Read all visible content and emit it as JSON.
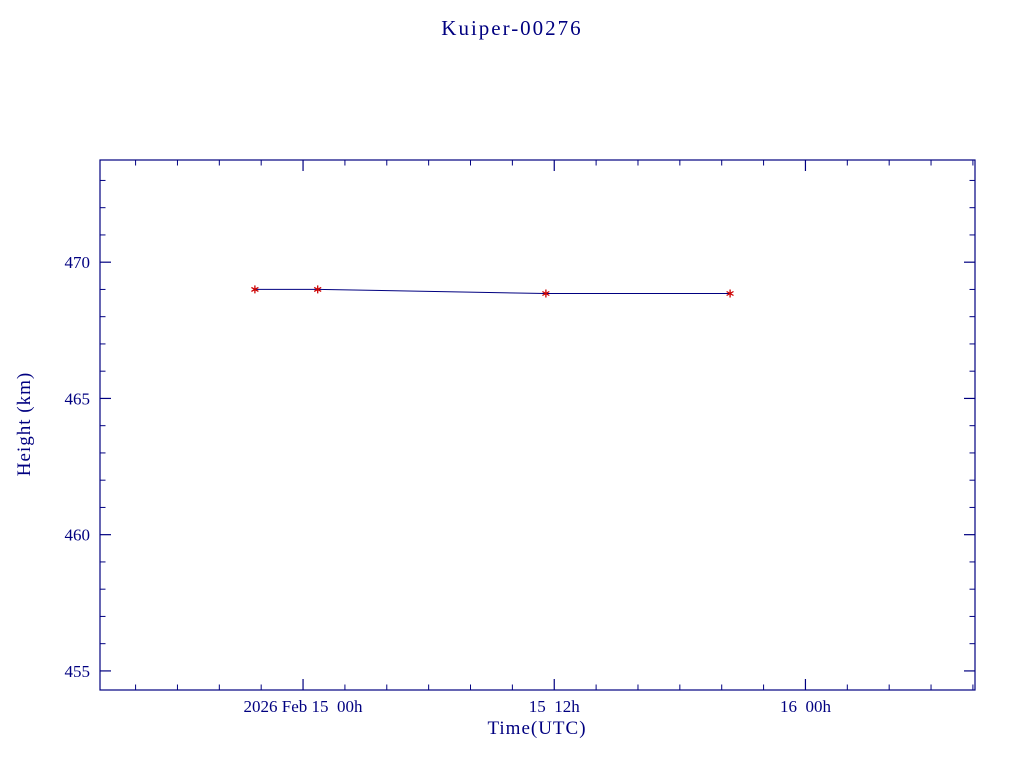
{
  "page": {
    "background": "#ffffff"
  },
  "chart_data": {
    "type": "line",
    "title": "Kuiper-00276",
    "xlabel": "Time(UTC)",
    "ylabel": "Height (km)",
    "axis_color": "#000080",
    "line_color": "#000080",
    "marker": "asterisk",
    "marker_color": "#cc0000",
    "x_unit": "hours relative to 2026 Feb 15 00h UTC",
    "xlim": [
      -9.7,
      32.1
    ],
    "ylim": [
      454.3,
      473.75
    ],
    "x_major_ticks": [
      {
        "value": 0,
        "label": "2026 Feb 15  00h"
      },
      {
        "value": 12,
        "label": "15  12h"
      },
      {
        "value": 24,
        "label": "16  00h"
      }
    ],
    "x_minor_step": 2,
    "y_major_ticks": [
      {
        "value": 455,
        "label": "455"
      },
      {
        "value": 460,
        "label": "460"
      },
      {
        "value": 465,
        "label": "465"
      },
      {
        "value": 470,
        "label": "470"
      }
    ],
    "y_minor_step": 1,
    "points": [
      {
        "x": -2.3,
        "y": 469.0
      },
      {
        "x": 0.7,
        "y": 469.0
      },
      {
        "x": 11.6,
        "y": 468.85
      },
      {
        "x": 20.4,
        "y": 468.85
      }
    ],
    "grid": false,
    "legend": null
  }
}
